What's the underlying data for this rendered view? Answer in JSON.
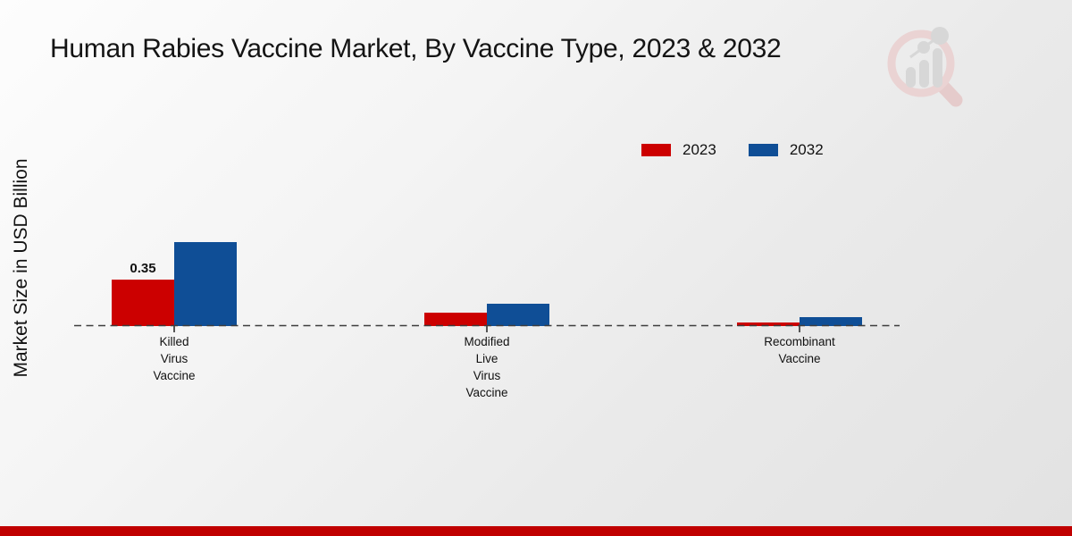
{
  "chart_data": {
    "type": "bar",
    "title": "Human Rabies Vaccine Market, By Vaccine Type, 2023 & 2032",
    "xlabel": "",
    "ylabel": "Market Size in USD Billion",
    "ylim": [
      0,
      0.7
    ],
    "grid": "off",
    "legend_position": "top-right",
    "axis_style": "dashed-zero-baseline-only",
    "categories": [
      "Killed Virus Vaccine",
      "Modified Live Virus Vaccine",
      "Recombinant Vaccine"
    ],
    "category_label_lines": [
      [
        "Killed",
        "Virus",
        "Vaccine"
      ],
      [
        "Modified",
        "Live",
        "Virus",
        "Vaccine"
      ],
      [
        "Recombinant",
        "Vaccine"
      ]
    ],
    "series": [
      {
        "name": "2023",
        "color": "#cc0000",
        "values": [
          0.35,
          0.1,
          0.03
        ],
        "bar_labels": [
          "0.35",
          "",
          ""
        ]
      },
      {
        "name": "2032",
        "color": "#0f4e96",
        "values": [
          0.64,
          0.17,
          0.07
        ],
        "bar_labels": [
          "",
          "",
          ""
        ]
      }
    ]
  },
  "legend": {
    "items": [
      {
        "label": "2023",
        "color": "#cc0000"
      },
      {
        "label": "2032",
        "color": "#0f4e96"
      }
    ]
  },
  "watermark": {
    "icon": "magnifier-bar-chart-logo"
  },
  "footer": {
    "accent_color": "#c00000"
  }
}
